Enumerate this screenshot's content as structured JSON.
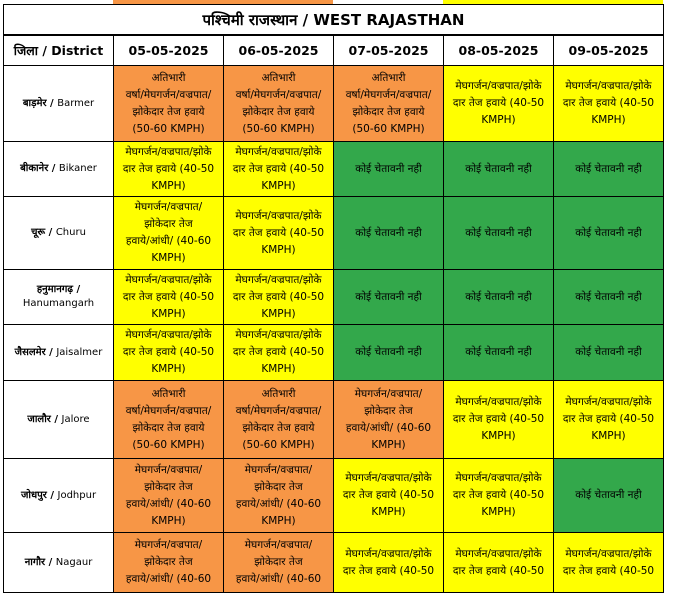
{
  "title": "पश्चिमी राजस्थान  /  WEST RAJASTHAN",
  "header": {
    "district_label": "जिला / District",
    "dates": [
      "05-05-2025",
      "06-05-2025",
      "07-05-2025",
      "08-05-2025",
      "09-05-2025"
    ]
  },
  "colors": {
    "orange": "#f79646",
    "yellow": "#ffff00",
    "green": "#33a84b"
  },
  "rows": [
    {
      "district_hi": "बाड़मेर",
      "district_en": "Barmer",
      "cells": [
        {
          "color": "orange",
          "text": "अतिभारी\nवर्षा/मेघगर्जन/वज्रपात/\nझोकेदार तेज हवाये\n(50-60 KMPH)"
        },
        {
          "color": "orange",
          "text": "अतिभारी\nवर्षा/मेघगर्जन/वज्रपात/\nझोकेदार तेज हवाये\n(50-60 KMPH)"
        },
        {
          "color": "orange",
          "text": "अतिभारी\nवर्षा/मेघगर्जन/वज्रपात/\nझोकेदार तेज हवाये\n(50-60 KMPH)"
        },
        {
          "color": "yellow",
          "text": "मेघगर्जन/वज्रपात/झोके\nदार तेज हवाये (40-50\nKMPH)"
        },
        {
          "color": "yellow",
          "text": "मेघगर्जन/वज्रपात/झोके\nदार तेज हवाये (40-50\nKMPH)"
        }
      ]
    },
    {
      "district_hi": "बीकानेर",
      "district_en": "Bikaner",
      "cells": [
        {
          "color": "yellow",
          "text": "मेघगर्जन/वज्रपात/झोके\nदार तेज हवाये (40-50\nKMPH)"
        },
        {
          "color": "yellow",
          "text": "मेघगर्जन/वज्रपात/झोके\nदार तेज हवाये (40-50\nKMPH)"
        },
        {
          "color": "green",
          "text": "कोई चेतावनी नही"
        },
        {
          "color": "green",
          "text": "कोई चेतावनी नही"
        },
        {
          "color": "green",
          "text": "कोई चेतावनी नही"
        }
      ]
    },
    {
      "district_hi": "चूरू",
      "district_en": "Churu",
      "cells": [
        {
          "color": "yellow",
          "text": "मेघगर्जन/वज्रपात/\nझोकेदार तेज\nहवाये/आंधी/ (40-60\nKMPH)"
        },
        {
          "color": "yellow",
          "text": "मेघगर्जन/वज्रपात/झोके\nदार तेज हवाये (40-50\nKMPH)"
        },
        {
          "color": "green",
          "text": "कोई चेतावनी नही"
        },
        {
          "color": "green",
          "text": "कोई चेतावनी नही"
        },
        {
          "color": "green",
          "text": "कोई चेतावनी नही"
        }
      ]
    },
    {
      "district_hi": "हनुमानगढ़ /",
      "district_en": "Hanumangarh",
      "cells": [
        {
          "color": "yellow",
          "text": "मेघगर्जन/वज्रपात/झोके\nदार तेज हवाये (40-50\nKMPH)"
        },
        {
          "color": "yellow",
          "text": "मेघगर्जन/वज्रपात/झोके\nदार तेज हवाये (40-50\nKMPH)"
        },
        {
          "color": "green",
          "text": "कोई चेतावनी नही"
        },
        {
          "color": "green",
          "text": "कोई चेतावनी नही"
        },
        {
          "color": "green",
          "text": "कोई चेतावनी नही"
        }
      ]
    },
    {
      "district_hi": "जैसलमेर",
      "district_en": "Jaisalmer",
      "cells": [
        {
          "color": "yellow",
          "text": "मेघगर्जन/वज्रपात/झोके\nदार तेज हवाये (40-50\nKMPH)"
        },
        {
          "color": "yellow",
          "text": "मेघगर्जन/वज्रपात/झोके\nदार तेज हवाये (40-50\nKMPH)"
        },
        {
          "color": "green",
          "text": "कोई चेतावनी नही"
        },
        {
          "color": "green",
          "text": "कोई चेतावनी नही"
        },
        {
          "color": "green",
          "text": "कोई चेतावनी नही"
        }
      ]
    },
    {
      "district_hi": "जालौर",
      "district_en": "Jalore",
      "cells": [
        {
          "color": "orange",
          "text": "अतिभारी\nवर्षा/मेघगर्जन/वज्रपात/\nझोकेदार तेज हवाये\n(50-60 KMPH)"
        },
        {
          "color": "orange",
          "text": "अतिभारी\nवर्षा/मेघगर्जन/वज्रपात/\nझोकेदार तेज हवाये\n(50-60 KMPH)"
        },
        {
          "color": "orange",
          "text": "मेघगर्जन/वज्रपात/\nझोकेदार तेज\nहवाये/आंधी/ (40-60\nKMPH)"
        },
        {
          "color": "yellow",
          "text": "मेघगर्जन/वज्रपात/झोके\nदार तेज हवाये (40-50\nKMPH)"
        },
        {
          "color": "yellow",
          "text": "मेघगर्जन/वज्रपात/झोके\nदार तेज हवाये (40-50\nKMPH)"
        }
      ]
    },
    {
      "district_hi": "जोधपुर",
      "district_en": "Jodhpur",
      "cells": [
        {
          "color": "orange",
          "text": "मेघगर्जन/वज्रपात/\nझोकेदार तेज\nहवाये/आंधी/ (40-60\nKMPH)"
        },
        {
          "color": "orange",
          "text": "मेघगर्जन/वज्रपात/\nझोकेदार तेज\nहवाये/आंधी/ (40-60\nKMPH)"
        },
        {
          "color": "yellow",
          "text": "मेघगर्जन/वज्रपात/झोके\nदार तेज हवाये (40-50\nKMPH)"
        },
        {
          "color": "yellow",
          "text": "मेघगर्जन/वज्रपात/झोके\nदार तेज हवाये (40-50\nKMPH)"
        },
        {
          "color": "green",
          "text": "कोई चेतावनी नही"
        }
      ]
    },
    {
      "district_hi": "नागौर",
      "district_en": "Nagaur",
      "cells": [
        {
          "color": "orange",
          "text": "मेघगर्जन/वज्रपात/\nझोकेदार तेज\nहवाये/आंधी/ (40-60"
        },
        {
          "color": "orange",
          "text": "मेघगर्जन/वज्रपात/\nझोकेदार तेज\nहवाये/आंधी/ (40-60"
        },
        {
          "color": "yellow",
          "text": "मेघगर्जन/वज्रपात/झोके\nदार तेज हवाये (40-50"
        },
        {
          "color": "yellow",
          "text": "मेघगर्जन/वज्रपात/झोके\nदार तेज हवाये (40-50"
        },
        {
          "color": "yellow",
          "text": "मेघगर्जन/वज्रपात/झोके\nदार तेज हवाये (40-50"
        }
      ]
    }
  ]
}
